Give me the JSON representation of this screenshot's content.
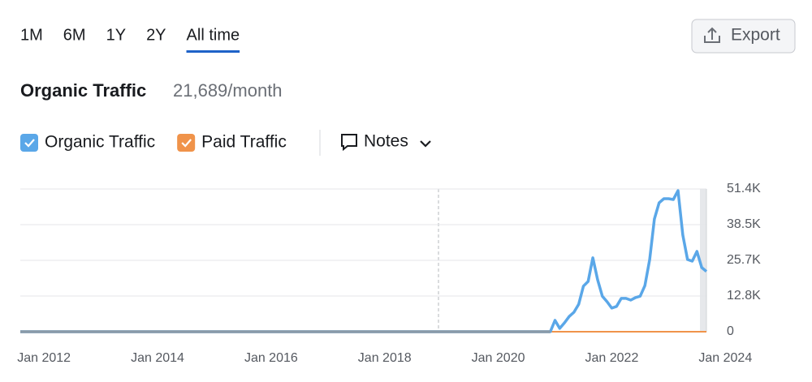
{
  "tabs": [
    "1M",
    "6M",
    "1Y",
    "2Y",
    "All time"
  ],
  "active_tab": 4,
  "export": "Export",
  "metric": {
    "title": "Organic Traffic",
    "value": "21,689/month"
  },
  "notes": "Notes",
  "chart_data": {
    "type": "line",
    "x": [
      "2011-08",
      "2020-12",
      "2021-01",
      "2021-02",
      "2021-03",
      "2021-04",
      "2021-05",
      "2021-06",
      "2021-07",
      "2021-08",
      "2021-09",
      "2021-10",
      "2021-11",
      "2021-12",
      "2022-01",
      "2022-02",
      "2022-03",
      "2022-04",
      "2022-05",
      "2022-06",
      "2022-07",
      "2022-08",
      "2022-09",
      "2022-10",
      "2022-11",
      "2022-12",
      "2023-01",
      "2023-02",
      "2023-03",
      "2023-04",
      "2023-05",
      "2023-06",
      "2023-07",
      "2023-08",
      "2023-09"
    ],
    "series": [
      {
        "name": "Organic Traffic",
        "color": "#5aa7e8",
        "values": [
          0,
          0,
          4100,
          1200,
          3200,
          5500,
          7000,
          9900,
          16400,
          18100,
          26600,
          18700,
          12800,
          10800,
          8500,
          9100,
          12000,
          12000,
          11400,
          12300,
          12800,
          16600,
          26000,
          40600,
          46400,
          47900,
          47900,
          47600,
          50800,
          34800,
          26000,
          25400,
          28900,
          23100,
          21689
        ]
      },
      {
        "name": "Paid Traffic",
        "color": "#f0934a",
        "values": [
          0,
          0,
          0,
          0,
          0,
          0,
          0,
          0,
          0,
          0,
          0,
          0,
          0,
          0,
          0,
          0,
          0,
          0,
          0,
          0,
          0,
          0,
          0,
          0,
          0,
          0,
          0,
          0,
          0,
          0,
          0,
          0,
          0,
          0,
          0
        ]
      }
    ],
    "xlim": [
      "2011-08",
      "2023-09"
    ],
    "xticks": [
      {
        "value": "2012-01",
        "label": "Jan 2012"
      },
      {
        "value": "2014-01",
        "label": "Jan 2014"
      },
      {
        "value": "2016-01",
        "label": "Jan 2016"
      },
      {
        "value": "2018-01",
        "label": "Jan 2018"
      },
      {
        "value": "2020-01",
        "label": "Jan 2020"
      },
      {
        "value": "2022-01",
        "label": "Jan 2022"
      },
      {
        "value": "2024-01",
        "label": "Jan 2024"
      }
    ],
    "ylim": [
      0,
      51400
    ],
    "yticks": [
      0,
      {
        "value": 12850,
        "label": "12.8K"
      },
      {
        "value": 25700,
        "label": "25.7K"
      },
      {
        "value": 38550,
        "label": "38.5K"
      },
      {
        "value": 51400,
        "label": "51.4K"
      }
    ],
    "grid": true
  }
}
